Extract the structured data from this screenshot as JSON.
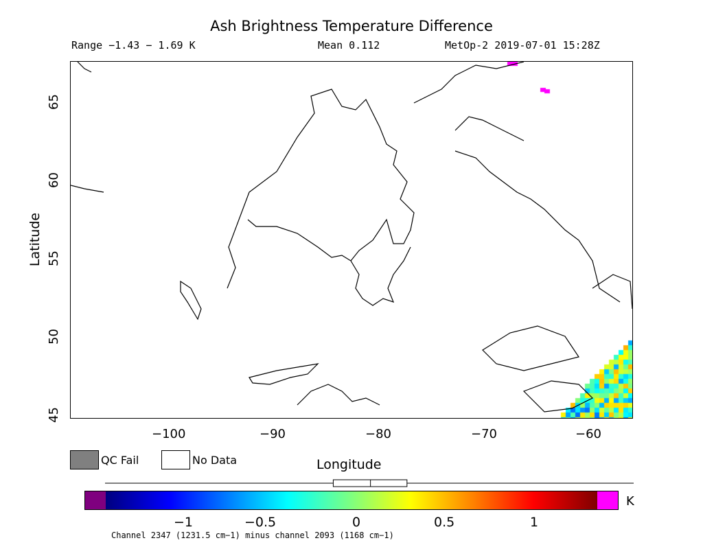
{
  "header": {
    "title": "Ash Brightness Temperature Difference",
    "range": "Range −1.43 − 1.69 K",
    "mean": "Mean 0.112",
    "satellite": "MetOp-2 2019-07-01 15:28Z"
  },
  "axes": {
    "ylabel": "Latitude",
    "xlabel": "Longitude",
    "lat_ticks": [
      "45",
      "50",
      "55",
      "60",
      "65"
    ],
    "lon_ticks": [
      "−100",
      "−90",
      "−80",
      "−70",
      "−60"
    ],
    "lat_range": [
      44.7,
      67.5
    ],
    "lon_range": [
      -110,
      -56
    ]
  },
  "legend": {
    "qc_fail": "QC Fail",
    "no_data": "No Data",
    "qc_fail_color": "#808080",
    "no_data_color": "#ffffff"
  },
  "colorbar": {
    "unit": "K",
    "ticks": [
      "−1",
      "−0.5",
      "0",
      "0.5",
      "1"
    ],
    "min": -1.4,
    "max": 1.4,
    "channel_note": "Channel 2347 (1231.5 cm−1) minus channel 2093 (1168 cm−1)",
    "under_color": "#7f007f",
    "over_color": "#ff00ff",
    "box_stats": {
      "p5": -0.1,
      "median": 0.112,
      "p95": 0.32
    }
  }
}
